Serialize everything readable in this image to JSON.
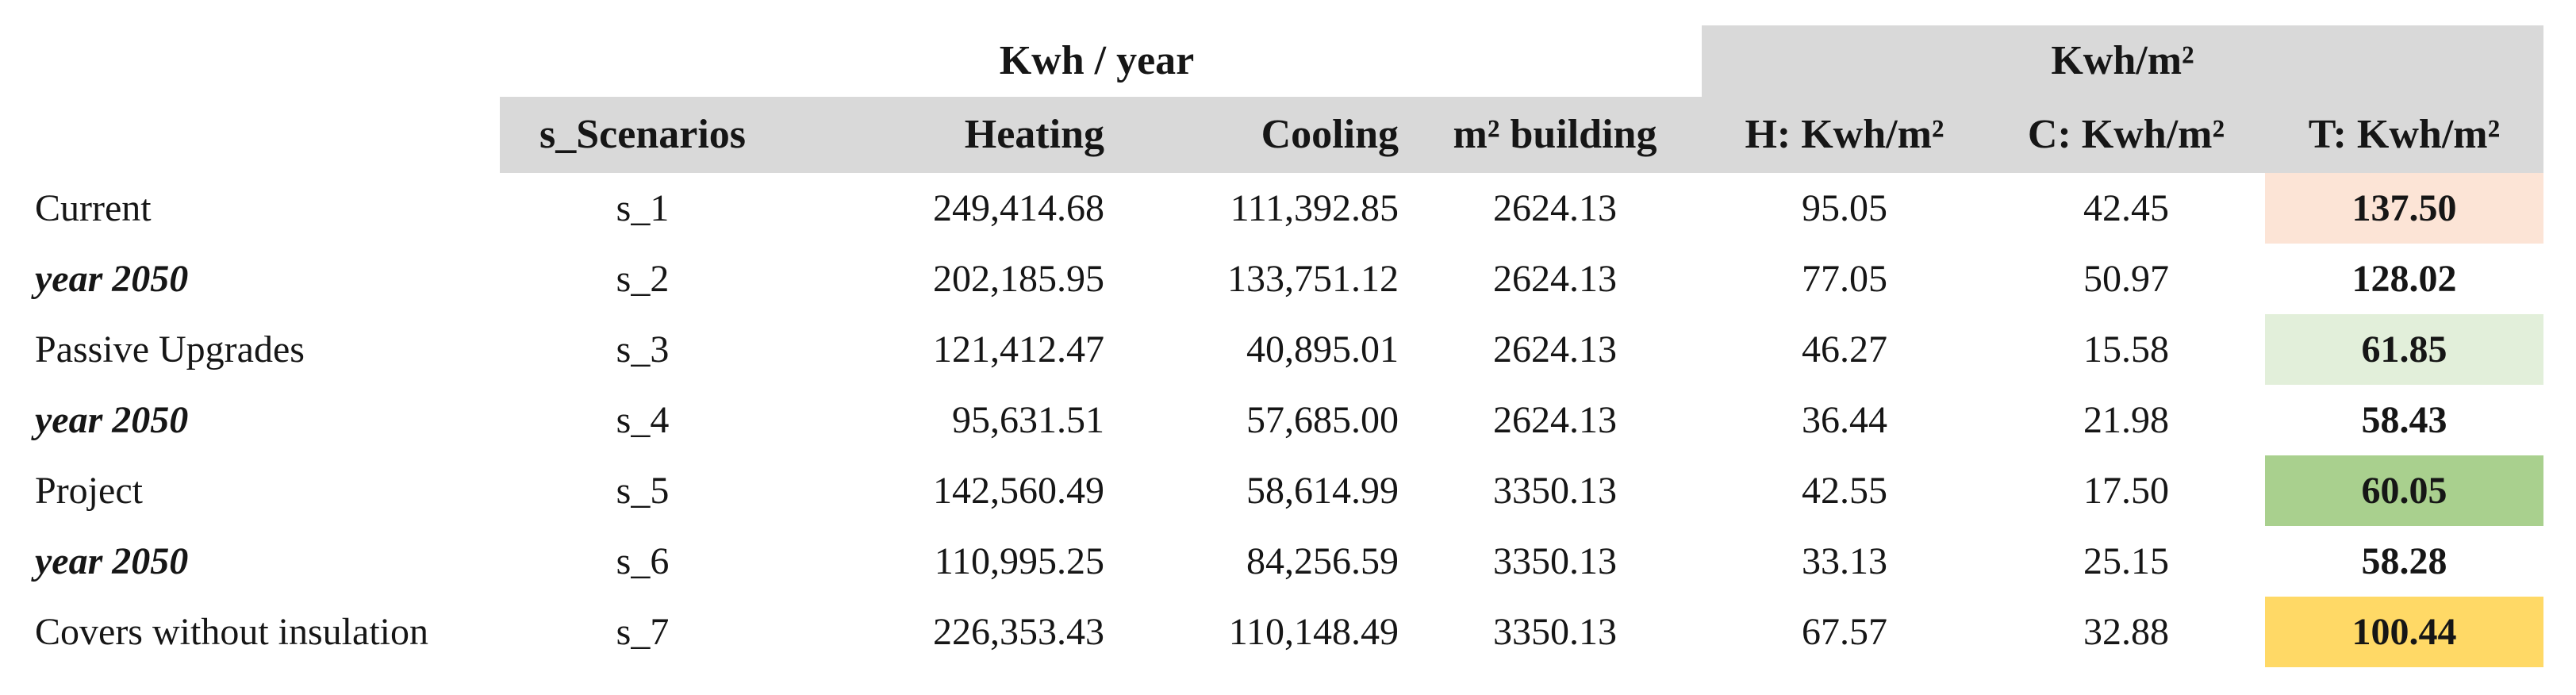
{
  "colors": {
    "header_fill": "#D9D9D9",
    "highlight_peach": "#FCE4D6",
    "highlight_light_green": "#E2EFDA",
    "highlight_green": "#A9D08E",
    "highlight_gold": "#FFD966"
  },
  "table": {
    "group_headers": {
      "kwh_year": "Kwh / year",
      "kwh_m2": "Kwh/m²"
    },
    "columns": [
      "",
      "s_Scenarios",
      "Heating",
      "Cooling",
      "m² building",
      "H: Kwh/m²",
      "C: Kwh/m²",
      "T: Kwh/m²"
    ],
    "rows": [
      {
        "label": "Current",
        "label_emphasis": false,
        "scenario": "s_1",
        "heating": "249,414.68",
        "cooling": "111,392.85",
        "m2_building": "2624.13",
        "h_kwh_m2": "95.05",
        "c_kwh_m2": "42.45",
        "t_kwh_m2": "137.50",
        "t_highlight": "#FCE4D6"
      },
      {
        "label": "year 2050",
        "label_emphasis": true,
        "scenario": "s_2",
        "heating": "202,185.95",
        "cooling": "133,751.12",
        "m2_building": "2624.13",
        "h_kwh_m2": "77.05",
        "c_kwh_m2": "50.97",
        "t_kwh_m2": "128.02",
        "t_highlight": null
      },
      {
        "label": "Passive Upgrades",
        "label_emphasis": false,
        "scenario": "s_3",
        "heating": "121,412.47",
        "cooling": "40,895.01",
        "m2_building": "2624.13",
        "h_kwh_m2": "46.27",
        "c_kwh_m2": "15.58",
        "t_kwh_m2": "61.85",
        "t_highlight": "#E2EFDA"
      },
      {
        "label": "year 2050",
        "label_emphasis": true,
        "scenario": "s_4",
        "heating": "95,631.51",
        "cooling": "57,685.00",
        "m2_building": "2624.13",
        "h_kwh_m2": "36.44",
        "c_kwh_m2": "21.98",
        "t_kwh_m2": "58.43",
        "t_highlight": null
      },
      {
        "label": "Project",
        "label_emphasis": false,
        "scenario": "s_5",
        "heating": "142,560.49",
        "cooling": "58,614.99",
        "m2_building": "3350.13",
        "h_kwh_m2": "42.55",
        "c_kwh_m2": "17.50",
        "t_kwh_m2": "60.05",
        "t_highlight": "#A9D08E"
      },
      {
        "label": "year 2050",
        "label_emphasis": true,
        "scenario": "s_6",
        "heating": "110,995.25",
        "cooling": "84,256.59",
        "m2_building": "3350.13",
        "h_kwh_m2": "33.13",
        "c_kwh_m2": "25.15",
        "t_kwh_m2": "58.28",
        "t_highlight": null
      },
      {
        "label": "Covers without insulation",
        "label_emphasis": false,
        "scenario": "s_7",
        "heating": "226,353.43",
        "cooling": "110,148.49",
        "m2_building": "3350.13",
        "h_kwh_m2": "67.57",
        "c_kwh_m2": "32.88",
        "t_kwh_m2": "100.44",
        "t_highlight": "#FFD966"
      }
    ]
  }
}
